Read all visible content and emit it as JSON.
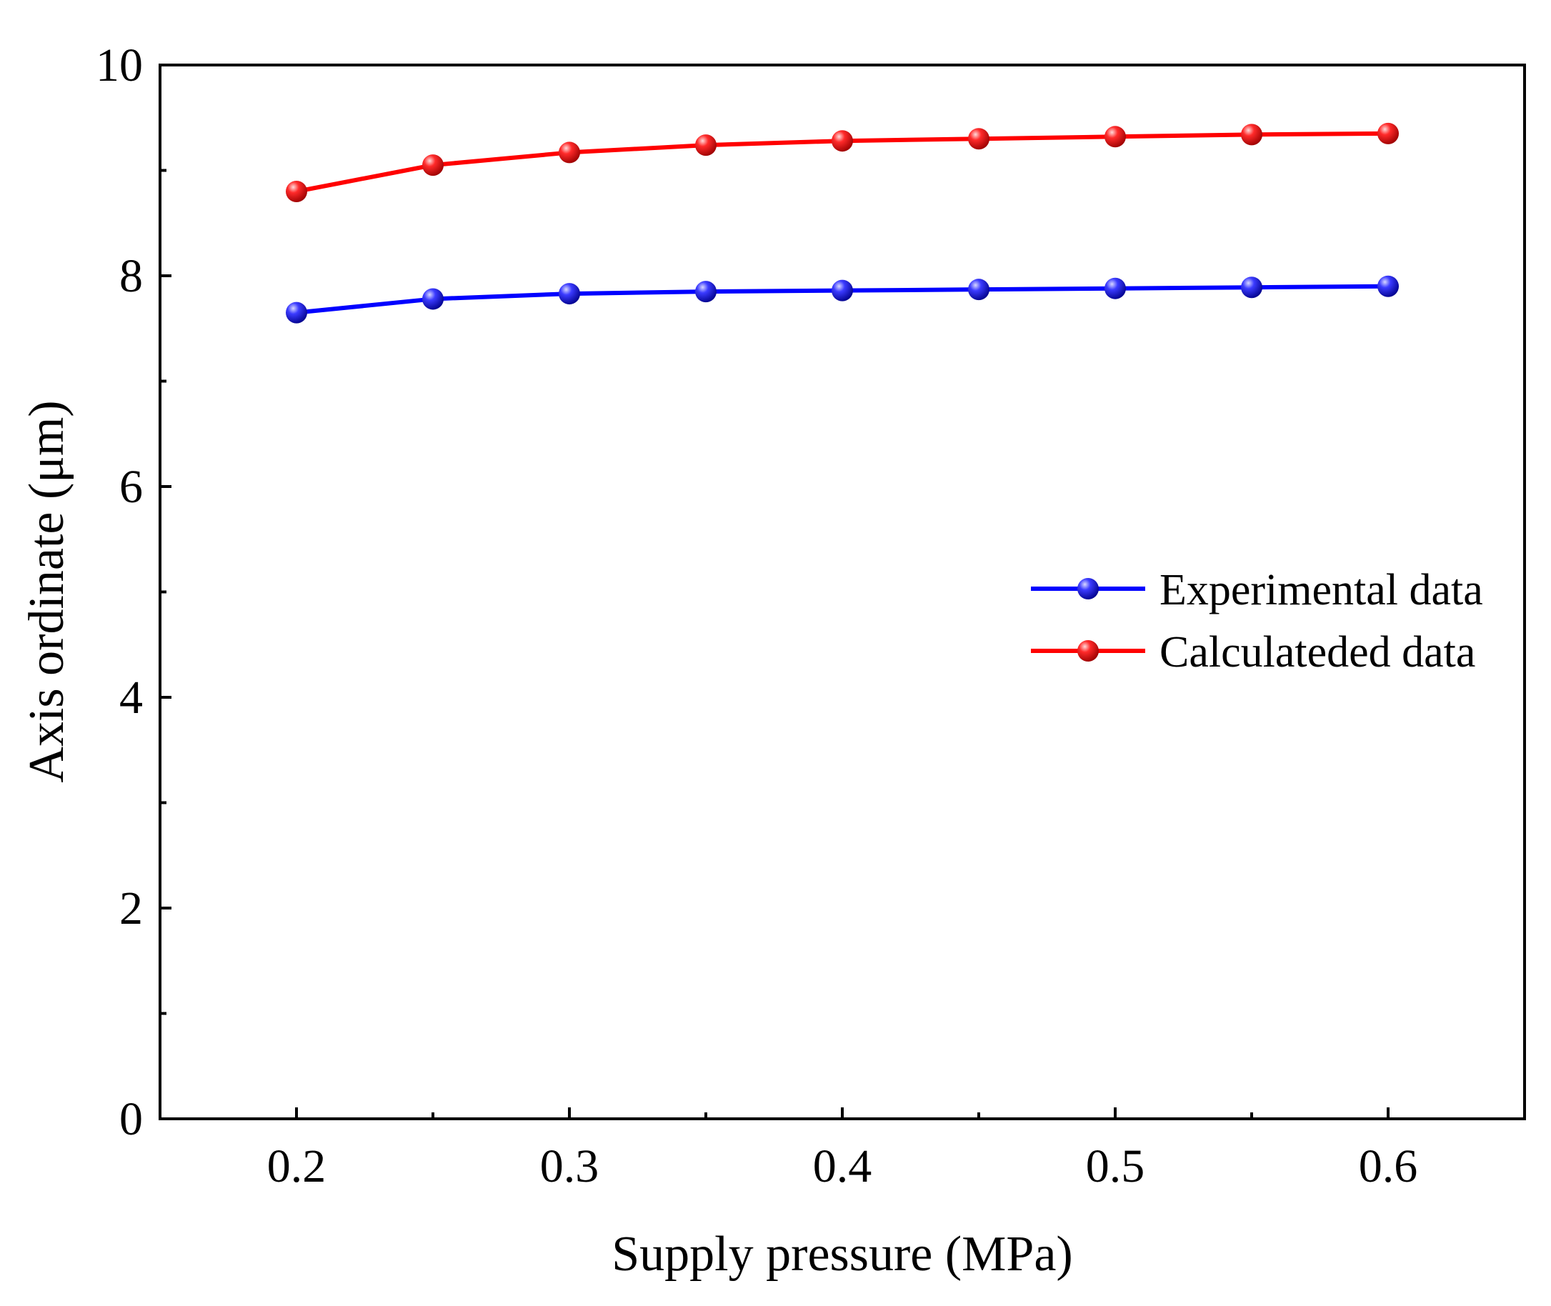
{
  "chart_data": {
    "type": "line",
    "title": "",
    "xlabel": "Supply pressure (MPa)",
    "ylabel": "Axis ordinate (μm)",
    "xlim": [
      0.15,
      0.65
    ],
    "ylim": [
      0,
      10
    ],
    "x_ticks": [
      0.2,
      0.3,
      0.4,
      0.5,
      0.6
    ],
    "x_tick_labels": [
      "0.2",
      "0.3",
      "0.4",
      "0.5",
      "0.6"
    ],
    "y_ticks": [
      0,
      2,
      4,
      6,
      8,
      10
    ],
    "y_tick_labels": [
      "0",
      "2",
      "4",
      "6",
      "8",
      "10"
    ],
    "grid": false,
    "legend_position": "center-right",
    "x": [
      0.2,
      0.25,
      0.3,
      0.35,
      0.4,
      0.45,
      0.5,
      0.55,
      0.6
    ],
    "series": [
      {
        "name": "Experimental data",
        "color": "#0000ff",
        "values": [
          7.65,
          7.78,
          7.83,
          7.85,
          7.86,
          7.87,
          7.88,
          7.89,
          7.9
        ]
      },
      {
        "name": "Calculateded data",
        "color": "#ff0000",
        "values": [
          8.8,
          9.05,
          9.17,
          9.24,
          9.28,
          9.3,
          9.32,
          9.34,
          9.35
        ]
      }
    ]
  }
}
